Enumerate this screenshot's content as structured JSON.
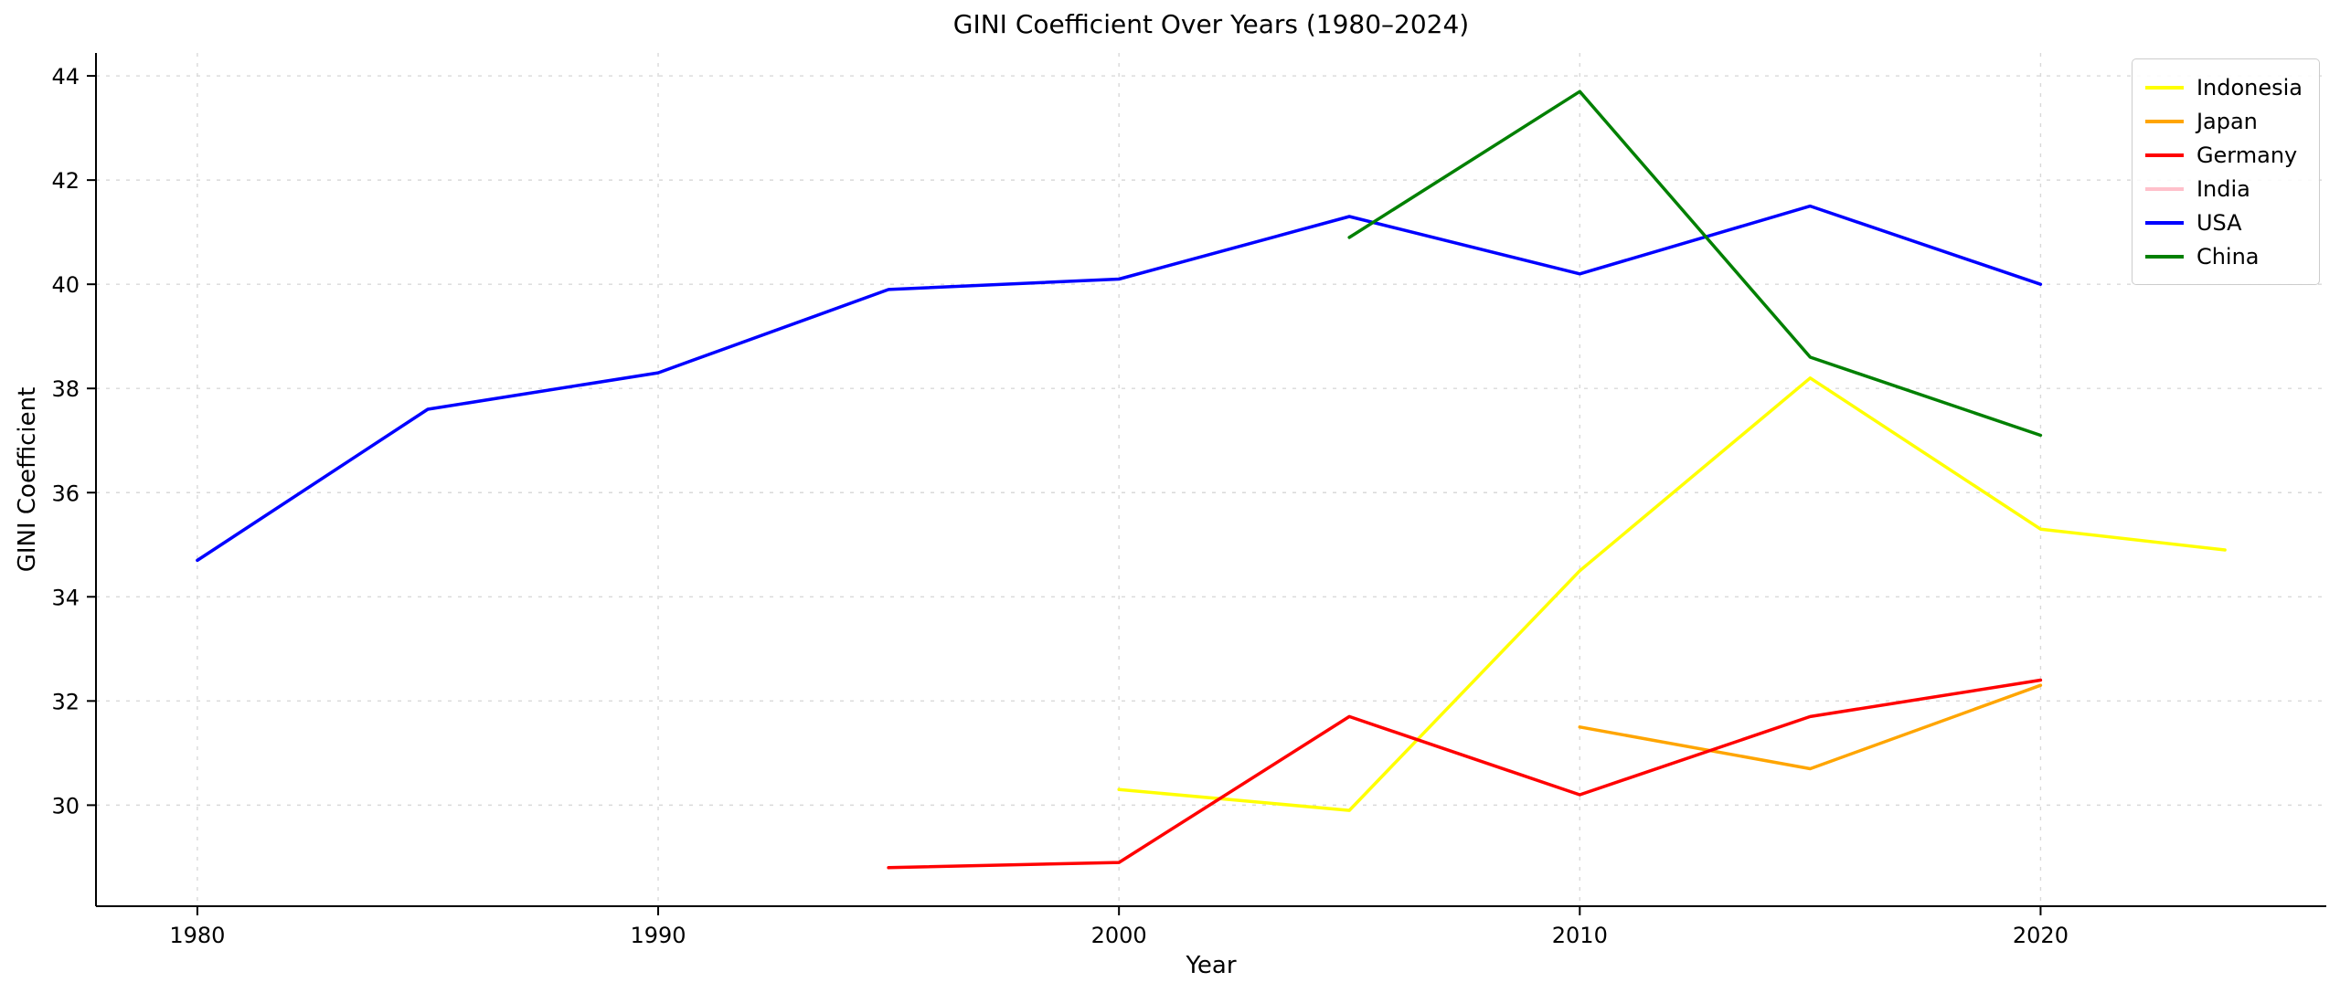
{
  "chart_data": {
    "type": "line",
    "title": "GINI Coefficient Over Years (1980–2024)",
    "xlabel": "Year",
    "ylabel": "GINI Coefficient",
    "xlim": [
      1977.8,
      2026.2
    ],
    "ylim": [
      28.06,
      44.44
    ],
    "xticks": [
      1980,
      1990,
      2000,
      2010,
      2020
    ],
    "yticks": [
      30,
      32,
      34,
      36,
      38,
      40,
      42,
      44
    ],
    "grid": true,
    "grid_style": "dashed",
    "legend_position": "upper right",
    "background": "#ffffff",
    "series": [
      {
        "name": "Indonesia",
        "color": "#ffff00",
        "x": [
          2000,
          2005,
          2010,
          2015,
          2020,
          2024
        ],
        "values": [
          30.3,
          29.9,
          34.5,
          38.2,
          35.3,
          34.9
        ]
      },
      {
        "name": "Japan",
        "color": "#ffa500",
        "x": [
          2010,
          2015,
          2020
        ],
        "values": [
          31.5,
          30.7,
          32.3
        ]
      },
      {
        "name": "Germany",
        "color": "#ff0000",
        "x": [
          1995,
          2000,
          2005,
          2010,
          2015,
          2020
        ],
        "values": [
          28.8,
          28.9,
          31.7,
          30.2,
          31.7,
          32.4
        ]
      },
      {
        "name": "India",
        "color": "#ffc0cb",
        "x": [],
        "values": []
      },
      {
        "name": "USA",
        "color": "#0000ff",
        "x": [
          1980,
          1985,
          1990,
          1995,
          2000,
          2005,
          2010,
          2015,
          2020
        ],
        "values": [
          34.7,
          37.6,
          38.3,
          39.9,
          40.1,
          41.3,
          40.2,
          41.5,
          40.0
        ]
      },
      {
        "name": "China",
        "color": "#008000",
        "x": [
          2005,
          2010,
          2015,
          2020
        ],
        "values": [
          40.9,
          43.7,
          38.6,
          37.1
        ]
      }
    ]
  }
}
